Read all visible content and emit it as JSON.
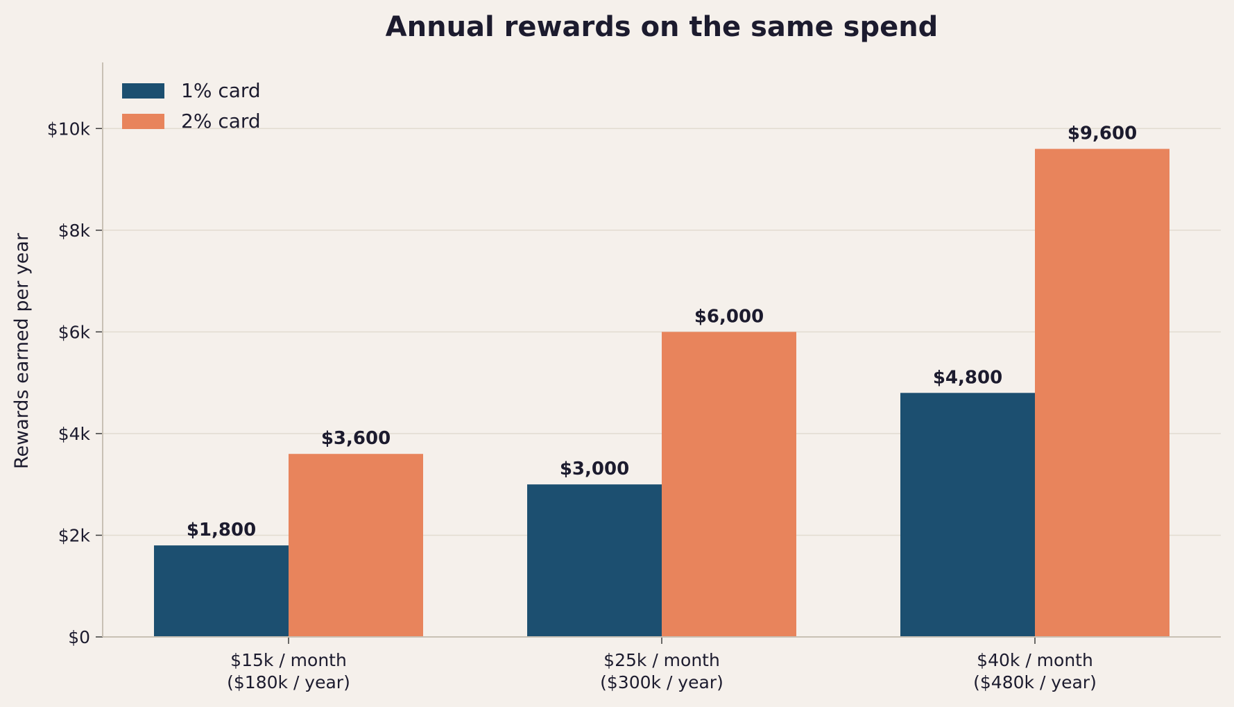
{
  "chart_data": {
    "type": "bar",
    "title": "Annual rewards on the same spend",
    "xlabel": "",
    "ylabel": "Rewards earned per year",
    "categories": [
      [
        "$15k / month",
        "($180k / year)"
      ],
      [
        "$25k / month",
        "($300k / year)"
      ],
      [
        "$40k / month",
        "($480k / year)"
      ]
    ],
    "series": [
      {
        "name": "1% card",
        "values": [
          1800,
          3000,
          4800
        ],
        "labels": [
          "$1,800",
          "$3,000",
          "$4,800"
        ],
        "color": "#1c4f70"
      },
      {
        "name": "2% card",
        "values": [
          3600,
          6000,
          9600
        ],
        "labels": [
          "$3,600",
          "$6,000",
          "$9,600"
        ],
        "color": "#e8845c"
      }
    ],
    "ylim": [
      0,
      11300
    ],
    "yticks": [
      0,
      2000,
      4000,
      6000,
      8000,
      10000
    ],
    "ytick_labels": [
      "$0",
      "$2k",
      "$4k",
      "$6k",
      "$8k",
      "$10k"
    ],
    "grid": true,
    "legend_position": "top-left",
    "colors": {
      "background": "#f5f0eb",
      "grid": "#e2dbd0",
      "axis": "#c8c0b4",
      "text": "#1c1b2e"
    }
  }
}
